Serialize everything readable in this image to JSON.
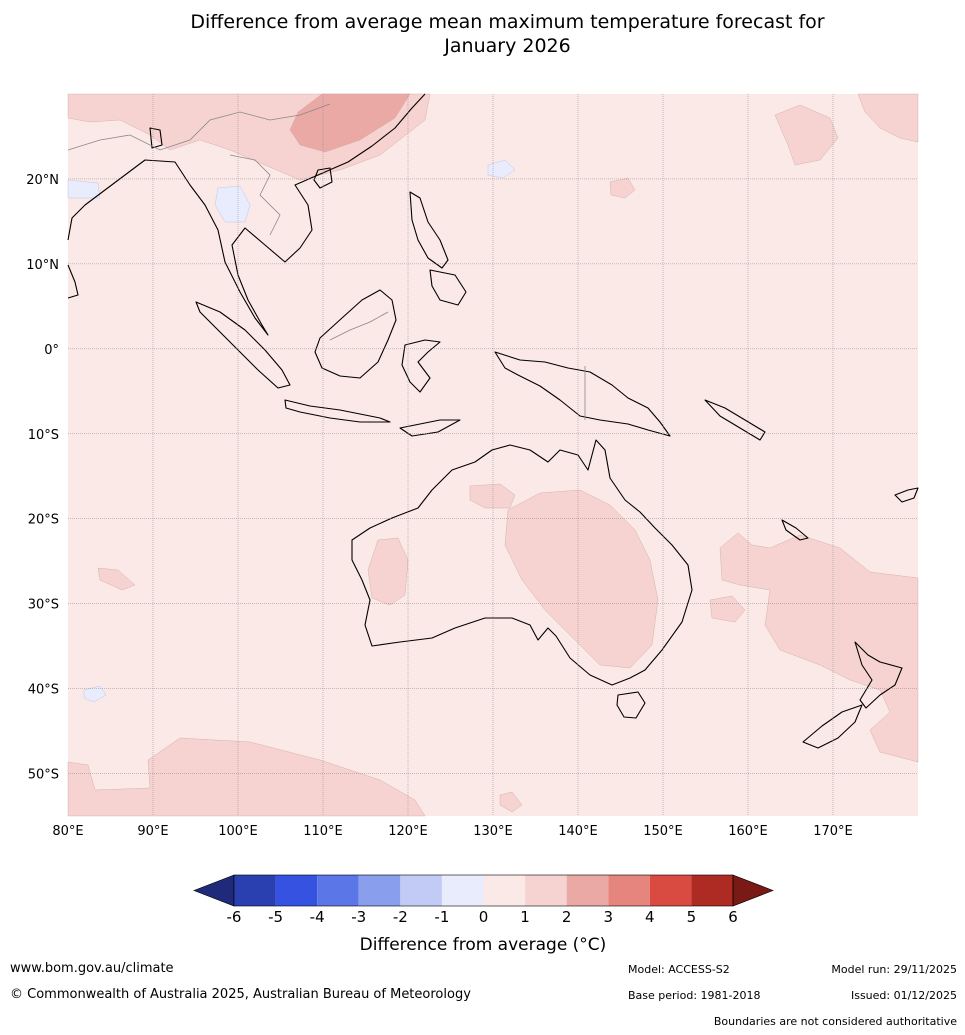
{
  "title_line1": "Difference from average mean maximum temperature forecast for",
  "title_line2": "January 2026",
  "map": {
    "lon_ticks": [
      "80°E",
      "90°E",
      "100°E",
      "110°E",
      "120°E",
      "130°E",
      "140°E",
      "150°E",
      "160°E",
      "170°E"
    ],
    "lat_ticks": [
      "20°N",
      "10°N",
      "0°",
      "10°S",
      "20°S",
      "30°S",
      "40°S",
      "50°S"
    ],
    "extent": {
      "lon_min": 80,
      "lon_max": 180,
      "lat_min": -55,
      "lat_max": 30
    },
    "background_color": "#fbe9e7"
  },
  "colorbar": {
    "label": "Difference from average (°C)",
    "ticks": [
      "-6",
      "-5",
      "-4",
      "-3",
      "-2",
      "-1",
      "0",
      "1",
      "2",
      "3",
      "4",
      "5",
      "6"
    ],
    "colors": [
      "#1f2a7a",
      "#2a3fb0",
      "#3553e0",
      "#5b76e6",
      "#8a9eee",
      "#c2caf6",
      "#e9ecfc",
      "#fbe9e7",
      "#f6d3d0",
      "#eba9a5",
      "#e6857e",
      "#d94b40",
      "#ad2b22",
      "#7a1a17"
    ]
  },
  "footer": {
    "site": "www.bom.gov.au/climate",
    "copyright": "© Commonwealth of Australia 2025, Australian Bureau of Meteorology",
    "model": "Model: ACCESS-S2",
    "model_run": "Model run: 29/11/2025",
    "base_period": "Base period: 1981-2018",
    "issued": "Issued: 01/12/2025",
    "disclaimer": "Boundaries are not considered authoritative"
  }
}
